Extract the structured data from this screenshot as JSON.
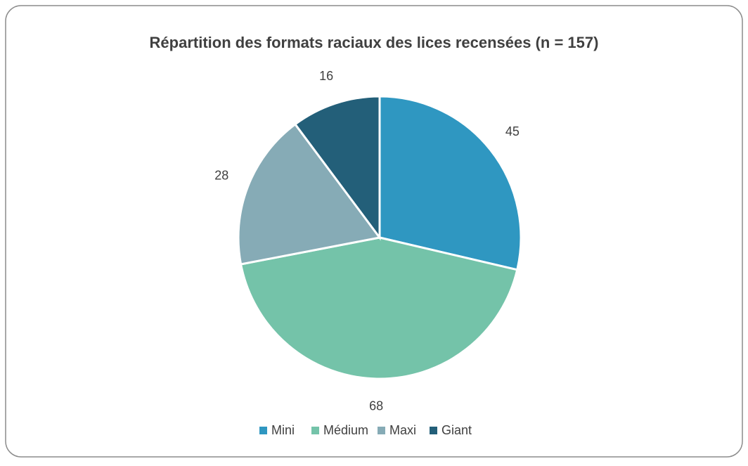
{
  "chart_data": {
    "type": "pie",
    "title": "Répartition des formats raciaux des lices recensées (n = 157)",
    "categories": [
      "Mini",
      "Médium",
      "Maxi",
      "Giant"
    ],
    "values": [
      45,
      68,
      28,
      16
    ],
    "colors": [
      "#2f97c1",
      "#74c3a9",
      "#86abb6",
      "#235f79"
    ],
    "legend": "bottom"
  }
}
